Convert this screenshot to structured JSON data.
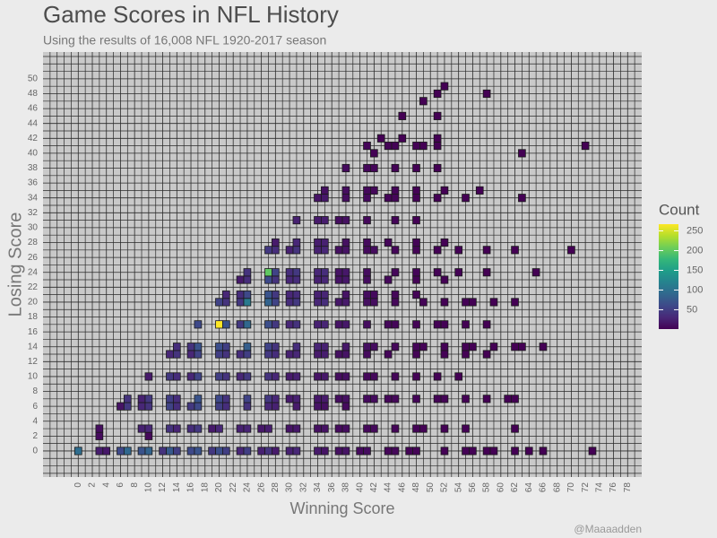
{
  "chart_data": {
    "type": "heatmap",
    "title": "Game Scores in NFL History",
    "subtitle": "Using the results of 16,008 NFL 1920-2017 season",
    "x_label": "Winning Score",
    "y_label": "Losing Score",
    "color_title": "Count",
    "caption": "@Maaaadden",
    "colormap": "viridis",
    "xlim": [
      -5,
      80
    ],
    "ylim": [
      -3.5,
      53.6
    ],
    "clim": [
      1,
      267
    ],
    "xticks": [
      0,
      2,
      4,
      6,
      8,
      10,
      12,
      14,
      16,
      18,
      20,
      22,
      24,
      26,
      28,
      30,
      32,
      34,
      36,
      38,
      40,
      42,
      44,
      46,
      48,
      50,
      52,
      54,
      56,
      58,
      60,
      62,
      64,
      66,
      68,
      70,
      72,
      74,
      76,
      78
    ],
    "yticks": [
      0,
      2,
      4,
      6,
      8,
      10,
      12,
      14,
      16,
      18,
      20,
      22,
      24,
      26,
      28,
      30,
      32,
      34,
      36,
      38,
      40,
      42,
      44,
      46,
      48,
      50
    ],
    "cticks": [
      50,
      100,
      150,
      200,
      250
    ],
    "grid": true,
    "rows": [
      {
        "y": 0,
        "x": [
          0,
          3,
          4,
          6,
          7,
          9,
          10,
          12,
          13,
          14,
          16,
          17,
          19,
          20,
          21,
          23,
          24,
          26,
          27,
          28,
          30,
          31,
          34,
          35,
          37,
          38,
          40,
          41,
          44,
          45,
          47,
          48,
          52,
          55,
          56,
          58,
          59,
          62,
          64,
          66,
          73
        ],
        "values": [
          95,
          22,
          18,
          60,
          90,
          70,
          85,
          40,
          75,
          50,
          60,
          70,
          45,
          65,
          50,
          30,
          50,
          25,
          40,
          20,
          25,
          30,
          20,
          15,
          12,
          15,
          8,
          10,
          5,
          6,
          3,
          3,
          2,
          2,
          2,
          1,
          1,
          1,
          1,
          1,
          1
        ]
      },
      {
        "y": 2,
        "x": [
          3,
          10
        ],
        "values": [
          8,
          6
        ]
      },
      {
        "y": 3,
        "x": [
          3,
          9,
          10,
          13,
          14,
          16,
          17,
          19,
          20,
          23,
          24,
          26,
          27,
          30,
          31,
          34,
          35,
          37,
          38,
          41,
          42,
          45,
          48,
          49,
          52,
          55,
          62
        ],
        "values": [
          10,
          25,
          30,
          40,
          28,
          35,
          45,
          20,
          30,
          25,
          28,
          18,
          22,
          15,
          18,
          12,
          14,
          8,
          10,
          6,
          7,
          4,
          3,
          2,
          2,
          2,
          1
        ]
      },
      {
        "y": 6,
        "x": [
          6,
          7,
          9,
          10,
          13,
          14,
          16,
          17,
          20,
          21,
          24,
          27,
          28,
          31,
          34,
          35,
          38
        ],
        "values": [
          15,
          45,
          30,
          40,
          55,
          35,
          45,
          60,
          50,
          35,
          40,
          30,
          25,
          20,
          15,
          12,
          8
        ]
      },
      {
        "y": 7,
        "x": [
          7,
          9,
          10,
          13,
          14,
          17,
          20,
          21,
          24,
          27,
          28,
          30,
          31,
          34,
          35,
          37,
          38,
          41,
          42,
          44,
          45,
          48,
          51,
          52,
          55,
          58,
          61,
          62
        ],
        "values": [
          40,
          25,
          45,
          50,
          35,
          70,
          60,
          40,
          55,
          45,
          30,
          20,
          25,
          18,
          20,
          10,
          12,
          8,
          9,
          5,
          6,
          4,
          3,
          3,
          2,
          1,
          1,
          1
        ]
      },
      {
        "y": 10,
        "x": [
          10,
          13,
          14,
          16,
          17,
          20,
          21,
          23,
          24,
          27,
          28,
          30,
          31,
          34,
          35,
          37,
          38,
          41,
          42,
          45,
          48,
          51,
          54
        ],
        "values": [
          20,
          45,
          35,
          30,
          55,
          50,
          40,
          30,
          45,
          40,
          30,
          20,
          25,
          15,
          18,
          10,
          12,
          6,
          7,
          4,
          3,
          2,
          1
        ]
      },
      {
        "y": 13,
        "x": [
          13,
          14,
          16,
          17,
          20,
          21,
          23,
          24,
          27,
          28,
          30,
          31,
          34,
          35,
          37,
          38,
          41,
          44,
          48,
          52,
          55,
          58
        ],
        "values": [
          30,
          40,
          30,
          55,
          50,
          40,
          35,
          50,
          45,
          35,
          25,
          30,
          20,
          22,
          12,
          15,
          8,
          5,
          3,
          2,
          1,
          1
        ]
      },
      {
        "y": 14,
        "x": [
          14,
          16,
          17,
          20,
          21,
          24,
          27,
          28,
          31,
          34,
          35,
          38,
          41,
          42,
          45,
          48,
          49,
          52,
          55,
          56,
          59,
          62,
          63,
          66
        ],
        "values": [
          35,
          40,
          70,
          65,
          50,
          80,
          55,
          40,
          35,
          28,
          25,
          18,
          12,
          10,
          6,
          4,
          3,
          2,
          2,
          1,
          1,
          1,
          1,
          1
        ]
      },
      {
        "y": 17,
        "x": [
          17,
          20,
          21,
          23,
          24,
          27,
          28,
          30,
          31,
          34,
          35,
          37,
          38,
          41,
          44,
          45,
          48,
          51,
          52,
          55,
          58
        ],
        "values": [
          60,
          267,
          70,
          45,
          90,
          65,
          45,
          30,
          40,
          25,
          28,
          15,
          18,
          10,
          6,
          5,
          3,
          2,
          2,
          1,
          1
        ]
      },
      {
        "y": 20,
        "x": [
          20,
          21,
          23,
          24,
          27,
          28,
          30,
          31,
          34,
          35,
          37,
          38,
          41,
          42,
          45,
          49,
          52,
          55,
          56,
          59,
          62
        ],
        "values": [
          55,
          40,
          45,
          110,
          85,
          55,
          35,
          45,
          30,
          35,
          18,
          20,
          12,
          10,
          6,
          3,
          2,
          2,
          1,
          1,
          1
        ]
      },
      {
        "y": 21,
        "x": [
          21,
          23,
          24,
          27,
          28,
          30,
          31,
          34,
          35,
          38,
          41,
          42,
          45,
          48
        ],
        "values": [
          30,
          35,
          60,
          70,
          45,
          30,
          35,
          25,
          28,
          15,
          10,
          8,
          5,
          3
        ]
      },
      {
        "y": 23,
        "x": [
          23,
          24,
          27,
          28,
          30,
          31,
          34,
          35,
          37,
          38,
          41,
          44,
          48,
          52
        ],
        "values": [
          20,
          35,
          60,
          40,
          30,
          35,
          25,
          30,
          15,
          18,
          10,
          6,
          3,
          2
        ]
      },
      {
        "y": 24,
        "x": [
          24,
          27,
          28,
          30,
          31,
          34,
          35,
          37,
          38,
          41,
          45,
          48,
          51,
          54,
          58,
          65
        ],
        "values": [
          40,
          200,
          55,
          35,
          45,
          30,
          35,
          15,
          18,
          10,
          6,
          4,
          3,
          2,
          1,
          1
        ]
      },
      {
        "y": 27,
        "x": [
          27,
          28,
          30,
          31,
          34,
          35,
          37,
          38,
          41,
          42,
          45,
          48,
          51,
          54,
          58,
          62,
          70
        ],
        "values": [
          45,
          35,
          25,
          40,
          25,
          30,
          12,
          15,
          8,
          9,
          5,
          3,
          2,
          2,
          1,
          1,
          1
        ]
      },
      {
        "y": 28,
        "x": [
          28,
          31,
          34,
          35,
          38,
          41,
          44,
          48,
          52
        ],
        "values": [
          20,
          30,
          22,
          25,
          12,
          8,
          5,
          3,
          2
        ]
      },
      {
        "y": 31,
        "x": [
          31,
          34,
          35,
          37,
          38,
          41,
          45,
          48
        ],
        "values": [
          25,
          20,
          22,
          10,
          12,
          7,
          4,
          2
        ]
      },
      {
        "y": 34,
        "x": [
          34,
          35,
          38,
          41,
          44,
          45,
          48,
          51,
          55,
          63
        ],
        "values": [
          15,
          18,
          10,
          8,
          4,
          5,
          2,
          2,
          1,
          1
        ]
      },
      {
        "y": 35,
        "x": [
          35,
          38,
          41,
          42,
          45,
          48,
          52,
          57
        ],
        "values": [
          12,
          10,
          7,
          6,
          4,
          2,
          1,
          1
        ]
      },
      {
        "y": 38,
        "x": [
          38,
          41,
          42,
          45,
          48,
          51
        ],
        "values": [
          8,
          6,
          5,
          3,
          2,
          1
        ]
      },
      {
        "y": 40,
        "x": [
          42,
          63
        ],
        "values": [
          2,
          1
        ]
      },
      {
        "y": 41,
        "x": [
          41,
          44,
          45,
          48,
          49,
          51,
          72
        ],
        "values": [
          4,
          3,
          3,
          2,
          1,
          1,
          1
        ]
      },
      {
        "y": 42,
        "x": [
          43,
          46,
          51
        ],
        "values": [
          1,
          1,
          1
        ]
      },
      {
        "y": 45,
        "x": [
          46,
          51
        ],
        "values": [
          1,
          1
        ]
      },
      {
        "y": 47,
        "x": [
          49
        ],
        "values": [
          1
        ]
      },
      {
        "y": 48,
        "x": [
          51,
          58
        ],
        "values": [
          1,
          1
        ]
      },
      {
        "y": 49,
        "x": [
          52
        ],
        "values": [
          1
        ]
      }
    ]
  }
}
